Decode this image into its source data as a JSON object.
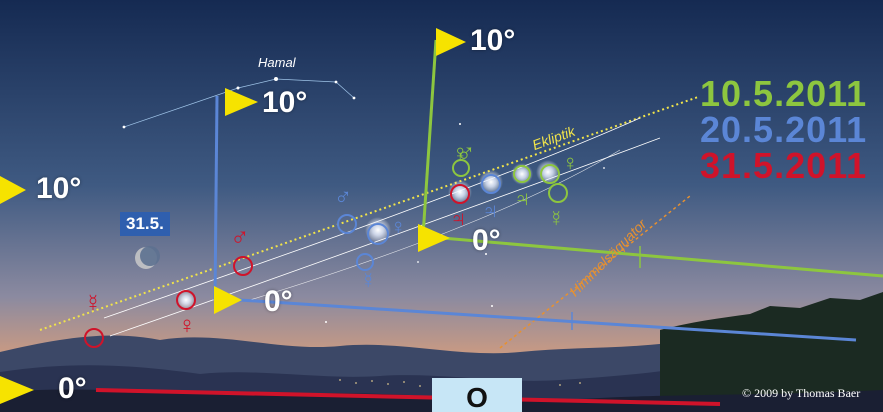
{
  "colors": {
    "green": "#8dc63f",
    "blue": "#5b86d6",
    "red": "#d0132a",
    "yellow_ecliptic": "#f1e44a",
    "orange_equator": "#e8912f",
    "marker": "#f6e300"
  },
  "dates": [
    {
      "label": "10.5.2011",
      "color": "#8dc63f"
    },
    {
      "label": "20.5.2011",
      "color": "#5b86d6"
    },
    {
      "label": "31.5.2011",
      "color": "#d0132a"
    }
  ],
  "degree_labels": {
    "left_10": "10°",
    "left_0": "0°",
    "blue_10": "10°",
    "blue_0": "0°",
    "green_10": "10°",
    "green_0": "0°"
  },
  "labels": {
    "hamal": "Hamal",
    "ekliptik": "Ekliptik",
    "himmelsaequator": "Himmelsäquator",
    "moon_date": "31.5.",
    "direction": "O",
    "copyright": "© 2009 by Thomas Baer"
  },
  "icons": {
    "mercury": "mercury-symbol",
    "venus": "venus-symbol",
    "mars": "mars-symbol",
    "jupiter": "jupiter-symbol",
    "moon": "crescent-moon",
    "marker": "yellow-triangle-flag"
  },
  "planet_glyphs": {
    "mercury": "☿",
    "venus": "♀",
    "mars": "♂",
    "jupiter": "♃"
  }
}
